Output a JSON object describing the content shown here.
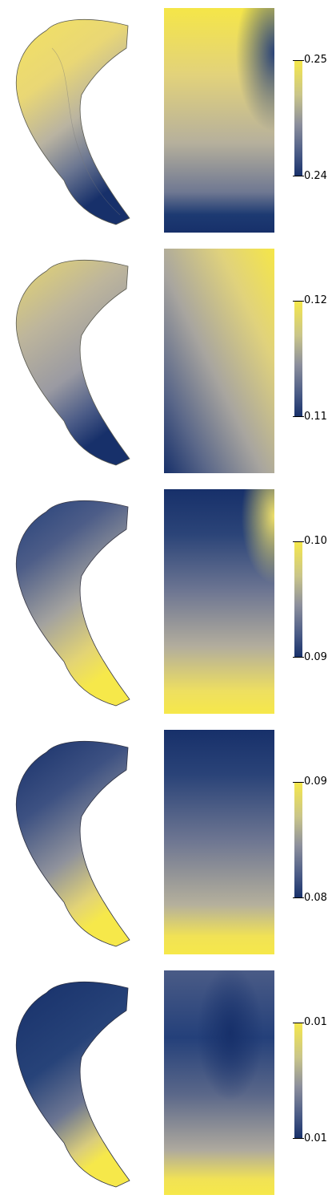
{
  "colormap": {
    "name": "cividis",
    "low_color": "#17306a",
    "mid_color": "#8c8f9c",
    "high_color": "#f6e84a"
  },
  "panels": [
    {
      "colorbar": {
        "max_label": "0.25",
        "min_label": "0.24"
      },
      "surface_pattern": "yellow-top-blue-tip",
      "flatmap_pattern": "yellow-top-blue-bottom"
    },
    {
      "colorbar": {
        "max_label": "0.12",
        "min_label": "0.11"
      },
      "surface_pattern": "gray-body-blue-tip",
      "flatmap_pattern": "yellow-top-right-blue-bottom-left"
    },
    {
      "colorbar": {
        "max_label": "0.10",
        "min_label": "0.09"
      },
      "surface_pattern": "blue-top-yellow-tip",
      "flatmap_pattern": "blue-top-yellow-bottom"
    },
    {
      "colorbar": {
        "max_label": "0.09",
        "min_label": "0.08"
      },
      "surface_pattern": "blue-top-yellow-tip",
      "flatmap_pattern": "blue-top-yellow-bottom"
    },
    {
      "colorbar": {
        "max_label": "0.01",
        "min_label": "0.01"
      },
      "surface_pattern": "blue-body-yellow-tip",
      "flatmap_pattern": "blue-center-yellow-bottom"
    }
  ]
}
